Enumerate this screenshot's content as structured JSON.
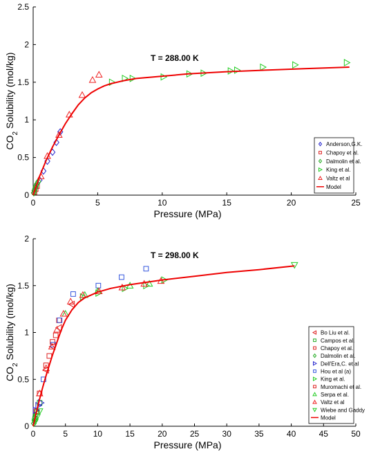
{
  "chart_data": [
    {
      "type": "scatter",
      "annotation": "T = 288.00 K",
      "xlabel": "Pressure (MPa)",
      "ylabel": {
        "pre": "CO",
        "sub": "2",
        "post": " Solubility (mol/kg)"
      },
      "xlim": [
        0,
        25
      ],
      "ylim": [
        0,
        2.5
      ],
      "xticks": [
        0,
        5,
        10,
        15,
        20,
        25
      ],
      "yticks": [
        0,
        0.5,
        1,
        1.5,
        2,
        2.5
      ],
      "grid": false,
      "legend_position": "lower-right",
      "series": [
        {
          "name": "Anderson,G.K.",
          "marker": "diamond",
          "color": "#2222cc",
          "points": [
            [
              0.2,
              0.1
            ],
            [
              0.5,
              0.2
            ],
            [
              0.8,
              0.32
            ],
            [
              1.1,
              0.45
            ],
            [
              1.5,
              0.57
            ],
            [
              1.8,
              0.7
            ],
            [
              2.1,
              0.84
            ]
          ]
        },
        {
          "name": "Chapoy et al.",
          "marker": "square",
          "color": "#dd2222",
          "points": [
            [
              0.1,
              0.04
            ],
            [
              0.2,
              0.08
            ],
            [
              0.3,
              0.12
            ]
          ]
        },
        {
          "name": "Dalmolin et al.",
          "marker": "diamond",
          "color": "#22aa22",
          "points": [
            [
              0.05,
              0.03
            ],
            [
              0.1,
              0.06
            ],
            [
              0.15,
              0.09
            ],
            [
              0.2,
              0.12
            ],
            [
              0.3,
              0.15
            ],
            [
              0.4,
              0.18
            ]
          ]
        },
        {
          "name": "King et al.",
          "marker": "triangle-right",
          "color": "#22cc22",
          "points": [
            [
              6.1,
              1.5
            ],
            [
              7.1,
              1.55
            ],
            [
              7.7,
              1.55
            ],
            [
              10.1,
              1.57
            ],
            [
              12.1,
              1.61
            ],
            [
              13.2,
              1.62
            ],
            [
              15.3,
              1.65
            ],
            [
              15.8,
              1.66
            ],
            [
              17.8,
              1.7
            ],
            [
              20.3,
              1.73
            ],
            [
              24.3,
              1.76
            ]
          ]
        },
        {
          "name": "Valtz et al",
          "marker": "triangle-up",
          "color": "#ee2222",
          "points": [
            [
              0.6,
              0.25
            ],
            [
              1.1,
              0.52
            ],
            [
              2.0,
              0.8
            ],
            [
              2.8,
              1.07
            ],
            [
              3.8,
              1.33
            ],
            [
              4.6,
              1.53
            ],
            [
              5.1,
              1.6
            ]
          ]
        },
        {
          "name": "Model",
          "marker": "line",
          "color": "#ee0000",
          "points": [
            [
              0,
              0
            ],
            [
              0.5,
              0.25
            ],
            [
              1,
              0.46
            ],
            [
              1.5,
              0.64
            ],
            [
              2,
              0.8
            ],
            [
              2.5,
              0.95
            ],
            [
              3,
              1.08
            ],
            [
              3.5,
              1.2
            ],
            [
              4,
              1.29
            ],
            [
              4.5,
              1.36
            ],
            [
              5,
              1.41
            ],
            [
              5.5,
              1.45
            ],
            [
              6,
              1.48
            ],
            [
              7,
              1.52
            ],
            [
              8,
              1.55
            ],
            [
              10,
              1.58
            ],
            [
              12,
              1.61
            ],
            [
              15,
              1.64
            ],
            [
              18,
              1.66
            ],
            [
              21,
              1.68
            ],
            [
              24.5,
              1.7
            ]
          ]
        }
      ]
    },
    {
      "type": "scatter",
      "annotation": "T = 298.00 K",
      "xlabel": "Pressure (MPa)",
      "ylabel": {
        "pre": "CO",
        "sub": "2",
        "post": " Solubility (mol/kg)"
      },
      "xlim": [
        0,
        50
      ],
      "ylim": [
        0,
        2
      ],
      "xticks": [
        0,
        5,
        10,
        15,
        20,
        25,
        30,
        35,
        40,
        45,
        50
      ],
      "yticks": [
        0,
        0.5,
        1,
        1.5,
        2
      ],
      "grid": false,
      "legend_position": "lower-right",
      "series": [
        {
          "name": "Bo Liu et al.",
          "marker": "triangle-left",
          "color": "#dd2222",
          "points": [
            [
              2.0,
              0.6
            ],
            [
              3.0,
              0.85
            ],
            [
              4.0,
              1.05
            ],
            [
              6.0,
              1.3
            ]
          ]
        },
        {
          "name": "Campos et al.",
          "marker": "square",
          "color": "#22aa22",
          "points": [
            [
              0.3,
              0.08
            ],
            [
              0.6,
              0.15
            ],
            [
              1.0,
              0.25
            ]
          ]
        },
        {
          "name": "Chapoy et al.",
          "marker": "square",
          "color": "#dd2222",
          "points": [
            [
              0.5,
              0.16
            ],
            [
              1.0,
              0.35
            ],
            [
              2.0,
              0.65
            ],
            [
              3.0,
              0.9
            ],
            [
              4.0,
              1.13
            ]
          ]
        },
        {
          "name": "Dalmolin et al.",
          "marker": "diamond",
          "color": "#22aa22",
          "points": [
            [
              0.1,
              0.03
            ],
            [
              0.2,
              0.06
            ],
            [
              0.3,
              0.09
            ],
            [
              0.4,
              0.12
            ]
          ]
        },
        {
          "name": "Dell'Era,C. et al",
          "marker": "triangle-right",
          "color": "#2222cc",
          "points": [
            [
              0.4,
              0.17
            ],
            [
              0.8,
              0.22
            ],
            [
              1.2,
              0.25
            ]
          ]
        },
        {
          "name": "Hou et al (a)",
          "marker": "square",
          "color": "#3355dd",
          "points": [
            [
              1.6,
              0.5
            ],
            [
              3.1,
              0.87
            ],
            [
              4.1,
              1.13
            ],
            [
              6.2,
              1.41
            ],
            [
              10.1,
              1.5
            ],
            [
              13.7,
              1.59
            ],
            [
              17.5,
              1.68
            ]
          ]
        },
        {
          "name": "King et al.",
          "marker": "triangle-right",
          "color": "#22cc22",
          "points": [
            [
              7.7,
              1.38
            ],
            [
              10.1,
              1.42
            ],
            [
              14.2,
              1.47
            ],
            [
              17.5,
              1.5
            ],
            [
              20.3,
              1.56
            ]
          ]
        },
        {
          "name": "Muromachi et al.",
          "marker": "square",
          "color": "#dd2222",
          "points": [
            [
              2.5,
              0.75
            ],
            [
              3.5,
              0.97
            ]
          ]
        },
        {
          "name": "Serpa et al.",
          "marker": "triangle-up",
          "color": "#22cc22",
          "points": [
            [
              5.0,
              1.2
            ],
            [
              8.0,
              1.4
            ],
            [
              10.0,
              1.44
            ],
            [
              15.0,
              1.5
            ],
            [
              18.0,
              1.52
            ]
          ]
        },
        {
          "name": "Valtz et al",
          "marker": "triangle-up",
          "color": "#ee2222",
          "points": [
            [
              1.0,
              0.35
            ],
            [
              2.0,
              0.62
            ],
            [
              2.9,
              0.85
            ],
            [
              3.7,
              1.03
            ],
            [
              4.7,
              1.2
            ],
            [
              5.8,
              1.33
            ],
            [
              7.7,
              1.4
            ],
            [
              10.2,
              1.44
            ],
            [
              13.8,
              1.48
            ],
            [
              17.2,
              1.52
            ],
            [
              19.8,
              1.55
            ]
          ]
        },
        {
          "name": "Wiebe and Gaddy",
          "marker": "triangle-down",
          "color": "#22cc22",
          "points": [
            [
              0.3,
              0.05
            ],
            [
              0.6,
              0.1
            ],
            [
              1.0,
              0.16
            ],
            [
              40.5,
              1.72
            ]
          ]
        },
        {
          "name": "Model",
          "marker": "line",
          "color": "#ee0000",
          "points": [
            [
              0,
              0
            ],
            [
              0.5,
              0.15
            ],
            [
              1,
              0.29
            ],
            [
              1.5,
              0.42
            ],
            [
              2,
              0.54
            ],
            [
              2.5,
              0.65
            ],
            [
              3,
              0.76
            ],
            [
              3.5,
              0.86
            ],
            [
              4,
              0.96
            ],
            [
              4.5,
              1.05
            ],
            [
              5,
              1.13
            ],
            [
              6,
              1.24
            ],
            [
              7,
              1.32
            ],
            [
              8,
              1.37
            ],
            [
              10,
              1.43
            ],
            [
              12,
              1.47
            ],
            [
              15,
              1.51
            ],
            [
              20,
              1.56
            ],
            [
              25,
              1.6
            ],
            [
              30,
              1.64
            ],
            [
              35,
              1.67
            ],
            [
              40.5,
              1.71
            ]
          ]
        }
      ]
    }
  ]
}
